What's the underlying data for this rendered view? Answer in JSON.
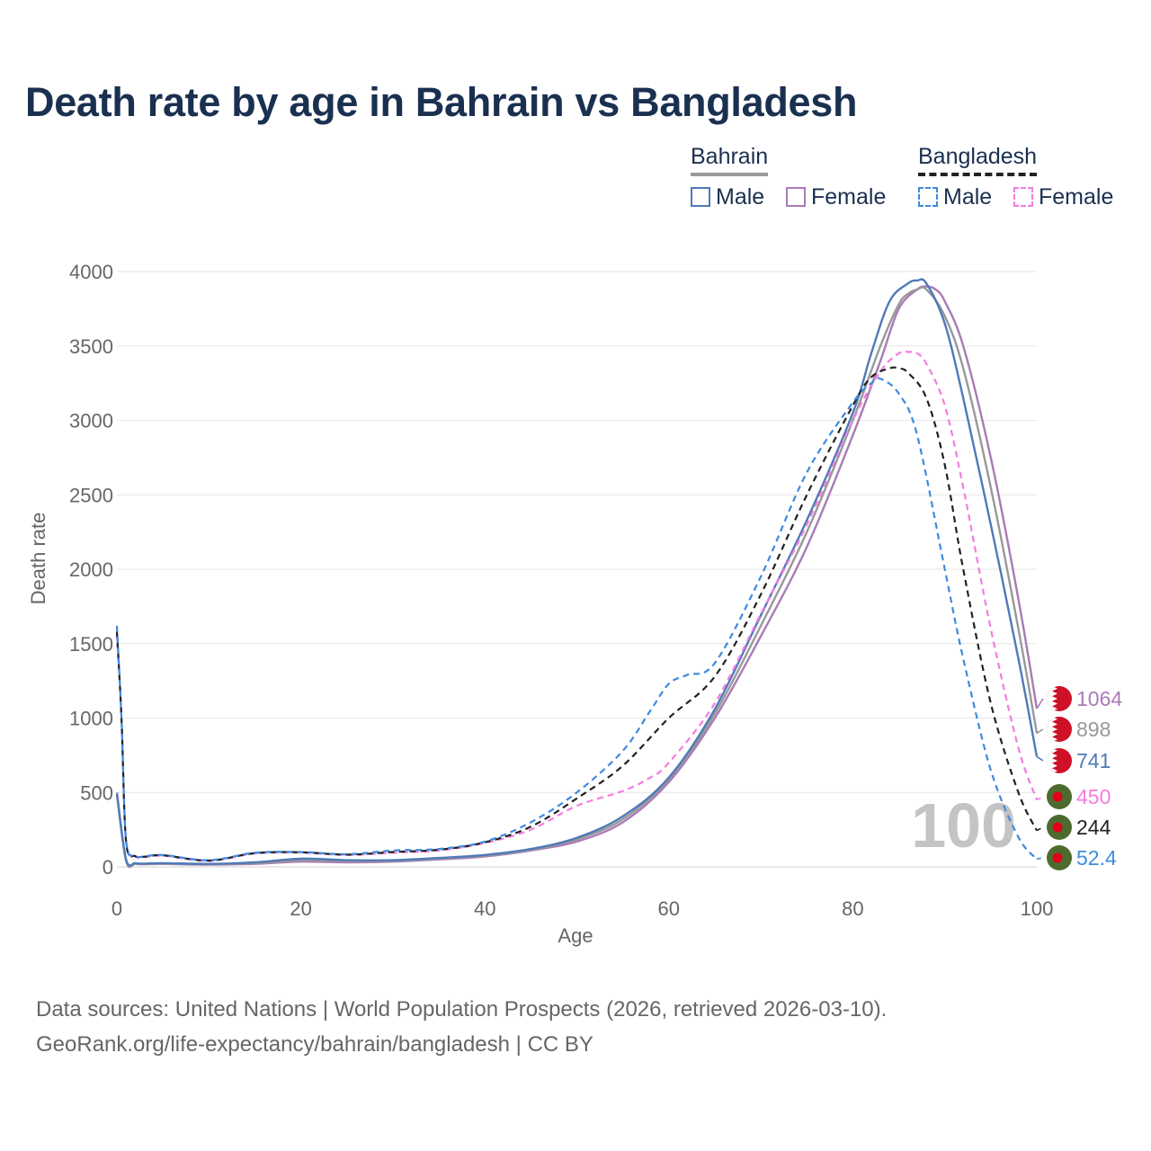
{
  "chart_data": {
    "type": "line",
    "title": "Death rate by age in Bahrain vs Bangladesh",
    "xlabel": "Age",
    "ylabel": "Death rate",
    "xlim": [
      0,
      100
    ],
    "ylim": [
      0,
      4000
    ],
    "xticks": [
      0,
      20,
      40,
      60,
      80,
      100
    ],
    "yticks": [
      0,
      500,
      1000,
      1500,
      2000,
      2500,
      3000,
      3500,
      4000
    ],
    "current_age_label": "100",
    "legend": {
      "groups": [
        {
          "name": "Bahrain",
          "items": [
            "Male",
            "Female"
          ]
        },
        {
          "name": "Bangladesh",
          "items": [
            "Male",
            "Female"
          ]
        }
      ]
    },
    "series": [
      {
        "name": "Bahrain Female",
        "country": "Bahrain",
        "sex": "Female",
        "color": "#a97bb5",
        "dashed": false,
        "end_label": "1064",
        "x": [
          0,
          1,
          2,
          3,
          5,
          10,
          15,
          20,
          25,
          30,
          35,
          40,
          45,
          50,
          55,
          60,
          65,
          70,
          75,
          80,
          83,
          85,
          87,
          88,
          89,
          90,
          92,
          95,
          98,
          100
        ],
        "values": [
          500,
          40,
          20,
          18,
          20,
          15,
          20,
          35,
          30,
          35,
          50,
          70,
          110,
          170,
          300,
          570,
          1000,
          1550,
          2150,
          2900,
          3400,
          3750,
          3880,
          3900,
          3880,
          3800,
          3500,
          2750,
          1800,
          1064
        ]
      },
      {
        "name": "Bahrain Total",
        "country": "Bahrain",
        "sex": "Total",
        "color": "#999999",
        "dashed": false,
        "end_label": "898",
        "x": [
          0,
          1,
          2,
          3,
          5,
          10,
          15,
          20,
          25,
          30,
          35,
          40,
          45,
          50,
          55,
          60,
          65,
          70,
          75,
          80,
          83,
          85,
          86,
          87,
          88,
          90,
          92,
          95,
          98,
          100
        ],
        "values": [
          500,
          45,
          22,
          20,
          22,
          18,
          25,
          45,
          40,
          40,
          55,
          75,
          115,
          185,
          320,
          590,
          1030,
          1620,
          2250,
          3000,
          3500,
          3780,
          3850,
          3880,
          3880,
          3700,
          3350,
          2550,
          1600,
          898
        ]
      },
      {
        "name": "Bahrain Male",
        "country": "Bahrain",
        "sex": "Male",
        "color": "#4f7ab8",
        "dashed": false,
        "end_label": "741",
        "x": [
          0,
          1,
          2,
          3,
          5,
          10,
          15,
          20,
          25,
          30,
          35,
          40,
          45,
          50,
          55,
          60,
          65,
          70,
          75,
          80,
          82,
          84,
          86,
          87,
          88,
          90,
          92,
          95,
          98,
          100
        ],
        "values": [
          490,
          50,
          25,
          22,
          25,
          20,
          30,
          55,
          45,
          45,
          60,
          80,
          120,
          195,
          340,
          600,
          1060,
          1690,
          2330,
          3050,
          3450,
          3800,
          3920,
          3940,
          3920,
          3650,
          3150,
          2300,
          1400,
          741
        ]
      },
      {
        "name": "Bangladesh Female",
        "country": "Bangladesh",
        "sex": "Female",
        "color": "#f57be0",
        "dashed": true,
        "end_label": "450",
        "x": [
          0,
          0.5,
          1,
          2,
          3,
          5,
          10,
          15,
          20,
          25,
          30,
          35,
          40,
          45,
          50,
          55,
          58,
          60,
          65,
          70,
          75,
          80,
          83,
          85,
          86,
          87,
          88,
          90,
          92,
          95,
          98,
          100
        ],
        "values": [
          1560,
          1000,
          170,
          70,
          65,
          75,
          40,
          90,
          95,
          80,
          95,
          110,
          160,
          250,
          410,
          510,
          600,
          700,
          1100,
          1700,
          2300,
          3000,
          3330,
          3450,
          3460,
          3450,
          3380,
          3100,
          2550,
          1600,
          800,
          450
        ]
      },
      {
        "name": "Bangladesh Total",
        "country": "Bangladesh",
        "sex": "Total",
        "color": "#222222",
        "dashed": true,
        "end_label": "244",
        "x": [
          0,
          0.5,
          1,
          2,
          3,
          5,
          10,
          15,
          20,
          25,
          30,
          35,
          40,
          45,
          50,
          55,
          60,
          65,
          70,
          75,
          80,
          82,
          84,
          85,
          86,
          88,
          90,
          92,
          95,
          98,
          100
        ],
        "values": [
          1580,
          1000,
          170,
          72,
          68,
          78,
          42,
          92,
          98,
          82,
          100,
          115,
          165,
          270,
          460,
          680,
          1000,
          1280,
          1830,
          2500,
          3100,
          3290,
          3350,
          3350,
          3320,
          3150,
          2700,
          2000,
          1100,
          500,
          244
        ]
      },
      {
        "name": "Bangladesh Male",
        "country": "Bangladesh",
        "sex": "Male",
        "color": "#3d8ae0",
        "dashed": true,
        "end_label": "52.4",
        "x": [
          0,
          0.5,
          1,
          2,
          3,
          5,
          10,
          15,
          20,
          25,
          30,
          35,
          40,
          45,
          50,
          55,
          58,
          60,
          62,
          65,
          70,
          75,
          80,
          82,
          83,
          85,
          87,
          90,
          92,
          95,
          98,
          100
        ],
        "values": [
          1620,
          1000,
          180,
          75,
          70,
          80,
          45,
          95,
          100,
          85,
          110,
          120,
          170,
          300,
          500,
          780,
          1050,
          1230,
          1290,
          1370,
          1950,
          2650,
          3120,
          3250,
          3280,
          3180,
          2900,
          2000,
          1400,
          650,
          200,
          52.4
        ]
      }
    ],
    "end_markers": [
      {
        "series": "Bahrain Female",
        "flag": "Bahrain"
      },
      {
        "series": "Bahrain Total",
        "flag": "Bahrain"
      },
      {
        "series": "Bahrain Male",
        "flag": "Bahrain"
      },
      {
        "series": "Bangladesh Female",
        "flag": "Bangladesh"
      },
      {
        "series": "Bangladesh Total",
        "flag": "Bangladesh"
      },
      {
        "series": "Bangladesh Male",
        "flag": "Bangladesh"
      }
    ]
  },
  "colors": {
    "title": "#1a3050",
    "axis_text": "#666666",
    "grid": "#e6e6e6",
    "bahrain_flag_red": "#ce1126",
    "bangladesh_flag_green": "#4d6b2e",
    "bangladesh_flag_red": "#e3001b",
    "watermark": "#c4c4c4"
  },
  "footer": {
    "sources": "Data sources: United Nations | World Population Prospects (2026, retrieved 2026-03-10).",
    "url": "GeoRank.org/life-expectancy/bahrain/bangladesh | CC BY"
  }
}
